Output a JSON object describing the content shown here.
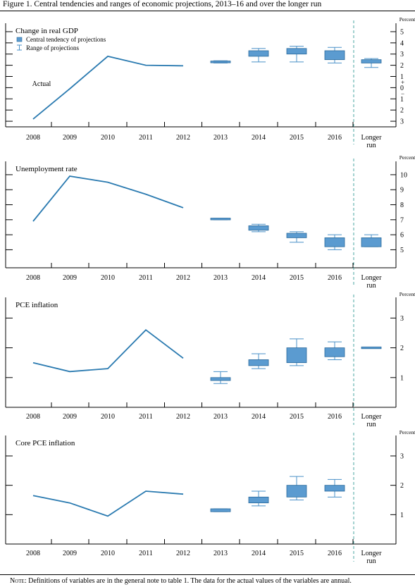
{
  "figure_title": "Figure 1. Central tendencies and ranges of economic projections, 2013–16 and over the longer run",
  "note": {
    "lead": "Note:",
    "text": " Definitions of variables are in the general note to table 1. The data for the actual values of the variables are annual."
  },
  "colors": {
    "line": "#2a7ab0",
    "box_fill": "#5b9bd0",
    "box_edge": "#2a6a9c",
    "range": "#4a90c8",
    "divider": "#4aa5a0"
  },
  "chart_data": [
    {
      "type": "line",
      "title": "Change in real GDP",
      "unit_label": "Percent",
      "annotation": "Actual",
      "legend": {
        "items": [
          "Central tendency of projections",
          "Range of projections"
        ],
        "placement": "top-left"
      },
      "categories": [
        "2008",
        "2009",
        "2010",
        "2011",
        "2012",
        "2013",
        "2014",
        "2015",
        "2016",
        "Longer run"
      ],
      "ylim": [
        -3.5,
        5.5
      ],
      "yticks": [
        -3,
        -2,
        -1,
        0,
        1,
        2,
        3,
        4,
        5
      ],
      "ytick_labels": [
        "3",
        "2",
        "1",
        "0",
        "1",
        "2",
        "3",
        "4",
        "5"
      ],
      "sign_labels": [
        {
          "value": -0.5,
          "text": "−"
        },
        {
          "value": 0.5,
          "text": "+"
        }
      ],
      "actual": {
        "x": [
          "2008",
          "2009",
          "2010",
          "2011",
          "2012"
        ],
        "values": [
          -2.8,
          -0.1,
          2.8,
          2.0,
          1.95
        ]
      },
      "projections": [
        {
          "x": "2013",
          "range": [
            2.2,
            2.4
          ],
          "central": [
            2.25,
            2.35
          ]
        },
        {
          "x": "2014",
          "range": [
            2.3,
            3.5
          ],
          "central": [
            2.8,
            3.3
          ]
        },
        {
          "x": "2015",
          "range": [
            2.3,
            3.7
          ],
          "central": [
            3.0,
            3.5
          ]
        },
        {
          "x": "2016",
          "range": [
            2.2,
            3.6
          ],
          "central": [
            2.5,
            3.3
          ]
        },
        {
          "x": "Longer run",
          "range": [
            1.8,
            2.6
          ],
          "central": [
            2.2,
            2.5
          ]
        }
      ]
    },
    {
      "type": "line",
      "title": "Unemployment rate",
      "unit_label": "Percent",
      "categories": [
        "2008",
        "2009",
        "2010",
        "2011",
        "2012",
        "2013",
        "2014",
        "2015",
        "2016",
        "Longer run"
      ],
      "ylim": [
        3.8,
        10.7
      ],
      "yticks": [
        5,
        6,
        7,
        8,
        9,
        10
      ],
      "ytick_labels": [
        "5",
        "6",
        "7",
        "8",
        "9",
        "10"
      ],
      "actual": {
        "x": [
          "2008",
          "2009",
          "2010",
          "2011",
          "2012"
        ],
        "values": [
          6.9,
          9.9,
          9.5,
          8.7,
          7.8
        ]
      },
      "projections": [
        {
          "x": "2013",
          "range": [
            7.0,
            7.1
          ],
          "central": [
            7.0,
            7.1
          ]
        },
        {
          "x": "2014",
          "range": [
            6.2,
            6.7
          ],
          "central": [
            6.3,
            6.6
          ]
        },
        {
          "x": "2015",
          "range": [
            5.5,
            6.2
          ],
          "central": [
            5.8,
            6.1
          ]
        },
        {
          "x": "2016",
          "range": [
            5.0,
            6.0
          ],
          "central": [
            5.2,
            5.8
          ]
        },
        {
          "x": "Longer run",
          "range": [
            5.2,
            6.0
          ],
          "central": [
            5.2,
            5.8
          ]
        }
      ]
    },
    {
      "type": "line",
      "title": "PCE inflation",
      "unit_label": "Percent",
      "categories": [
        "2008",
        "2009",
        "2010",
        "2011",
        "2012",
        "2013",
        "2014",
        "2015",
        "2016",
        "Longer run"
      ],
      "ylim": [
        0,
        3.6
      ],
      "yticks": [
        1,
        2,
        3
      ],
      "ytick_labels": [
        "1",
        "2",
        "3"
      ],
      "actual": {
        "x": [
          "2008",
          "2009",
          "2010",
          "2011",
          "2012"
        ],
        "values": [
          1.5,
          1.2,
          1.3,
          2.6,
          1.65
        ]
      },
      "projections": [
        {
          "x": "2013",
          "range": [
            0.8,
            1.2
          ],
          "central": [
            0.9,
            1.0
          ]
        },
        {
          "x": "2014",
          "range": [
            1.3,
            1.8
          ],
          "central": [
            1.4,
            1.6
          ]
        },
        {
          "x": "2015",
          "range": [
            1.4,
            2.3
          ],
          "central": [
            1.5,
            2.0
          ]
        },
        {
          "x": "2016",
          "range": [
            1.6,
            2.2
          ],
          "central": [
            1.7,
            2.0
          ]
        },
        {
          "x": "Longer run",
          "range": [
            2.0,
            2.0
          ],
          "central": [
            2.0,
            2.0
          ]
        }
      ]
    },
    {
      "type": "line",
      "title": "Core PCE inflation",
      "unit_label": "Percent",
      "categories": [
        "2008",
        "2009",
        "2010",
        "2011",
        "2012",
        "2013",
        "2014",
        "2015",
        "2016",
        "Longer run"
      ],
      "ylim": [
        0,
        3.6
      ],
      "yticks": [
        1,
        2,
        3
      ],
      "ytick_labels": [
        "1",
        "2",
        "3"
      ],
      "actual": {
        "x": [
          "2008",
          "2009",
          "2010",
          "2011",
          "2012"
        ],
        "values": [
          1.65,
          1.4,
          0.95,
          1.8,
          1.7
        ]
      },
      "projections": [
        {
          "x": "2013",
          "range": [
            1.1,
            1.2
          ],
          "central": [
            1.1,
            1.2
          ]
        },
        {
          "x": "2014",
          "range": [
            1.3,
            1.8
          ],
          "central": [
            1.4,
            1.6
          ]
        },
        {
          "x": "2015",
          "range": [
            1.5,
            2.3
          ],
          "central": [
            1.6,
            2.0
          ]
        },
        {
          "x": "2016",
          "range": [
            1.6,
            2.2
          ],
          "central": [
            1.8,
            2.0
          ]
        }
      ]
    }
  ]
}
